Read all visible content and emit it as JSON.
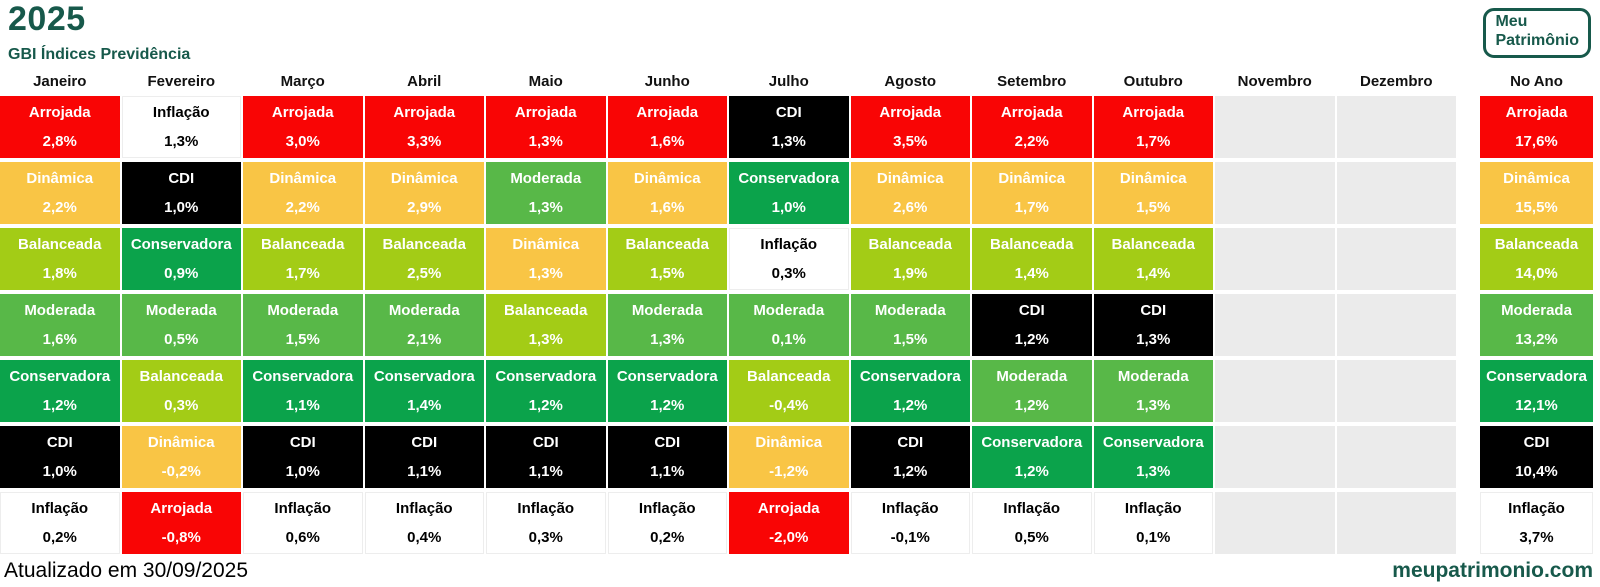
{
  "logo": {
    "line1": "Meu",
    "line2": "Patrimônio"
  },
  "footer": {
    "updated": "Atualizado em 30/09/2025",
    "site": "meupatrimonio.com"
  },
  "colors": {
    "brand": "#17594B",
    "empty_cell": "#EBEBEB",
    "header_text": "#111111"
  },
  "chart_data": {
    "type": "table",
    "title": "2025",
    "subtitle": "GBI Índices Previdência",
    "empty_color": "#EBEBEB",
    "categories": [
      "Arrojada",
      "Dinâmica",
      "Balanceada",
      "Moderada",
      "Conservadora",
      "CDI",
      "Inflação"
    ],
    "category_colors": {
      "Arrojada": {
        "bg": "#F90505",
        "text": "#FFFFFF"
      },
      "Dinâmica": {
        "bg": "#F9C545",
        "text": "#FFFFFF"
      },
      "Balanceada": {
        "bg": "#A3CC16",
        "text": "#FFFFFF"
      },
      "Moderada": {
        "bg": "#58B848",
        "text": "#FFFFFF"
      },
      "Conservadora": {
        "bg": "#0BA34B",
        "text": "#FFFFFF"
      },
      "CDI": {
        "bg": "#000000",
        "text": "#FFFFFF"
      },
      "Inflação": {
        "bg": "#FFFFFF",
        "text": "#000000"
      }
    },
    "columns": [
      {
        "label": "Janeiro",
        "cells": [
          {
            "category": "Arrojada",
            "value": "2,8%"
          },
          {
            "category": "Dinâmica",
            "value": "2,2%"
          },
          {
            "category": "Balanceada",
            "value": "1,8%"
          },
          {
            "category": "Moderada",
            "value": "1,6%"
          },
          {
            "category": "Conservadora",
            "value": "1,2%"
          },
          {
            "category": "CDI",
            "value": "1,0%"
          },
          {
            "category": "Inflação",
            "value": "0,2%"
          }
        ]
      },
      {
        "label": "Fevereiro",
        "cells": [
          {
            "category": "Inflação",
            "value": "1,3%"
          },
          {
            "category": "CDI",
            "value": "1,0%"
          },
          {
            "category": "Conservadora",
            "value": "0,9%"
          },
          {
            "category": "Moderada",
            "value": "0,5%"
          },
          {
            "category": "Balanceada",
            "value": "0,3%"
          },
          {
            "category": "Dinâmica",
            "value": "-0,2%"
          },
          {
            "category": "Arrojada",
            "value": "-0,8%"
          }
        ]
      },
      {
        "label": "Março",
        "cells": [
          {
            "category": "Arrojada",
            "value": "3,0%"
          },
          {
            "category": "Dinâmica",
            "value": "2,2%"
          },
          {
            "category": "Balanceada",
            "value": "1,7%"
          },
          {
            "category": "Moderada",
            "value": "1,5%"
          },
          {
            "category": "Conservadora",
            "value": "1,1%"
          },
          {
            "category": "CDI",
            "value": "1,0%"
          },
          {
            "category": "Inflação",
            "value": "0,6%"
          }
        ]
      },
      {
        "label": "Abril",
        "cells": [
          {
            "category": "Arrojada",
            "value": "3,3%"
          },
          {
            "category": "Dinâmica",
            "value": "2,9%"
          },
          {
            "category": "Balanceada",
            "value": "2,5%"
          },
          {
            "category": "Moderada",
            "value": "2,1%"
          },
          {
            "category": "Conservadora",
            "value": "1,4%"
          },
          {
            "category": "CDI",
            "value": "1,1%"
          },
          {
            "category": "Inflação",
            "value": "0,4%"
          }
        ]
      },
      {
        "label": "Maio",
        "cells": [
          {
            "category": "Arrojada",
            "value": "1,3%"
          },
          {
            "category": "Moderada",
            "value": "1,3%"
          },
          {
            "category": "Dinâmica",
            "value": "1,3%"
          },
          {
            "category": "Balanceada",
            "value": "1,3%"
          },
          {
            "category": "Conservadora",
            "value": "1,2%"
          },
          {
            "category": "CDI",
            "value": "1,1%"
          },
          {
            "category": "Inflação",
            "value": "0,3%"
          }
        ]
      },
      {
        "label": "Junho",
        "cells": [
          {
            "category": "Arrojada",
            "value": "1,6%"
          },
          {
            "category": "Dinâmica",
            "value": "1,6%"
          },
          {
            "category": "Balanceada",
            "value": "1,5%"
          },
          {
            "category": "Moderada",
            "value": "1,3%"
          },
          {
            "category": "Conservadora",
            "value": "1,2%"
          },
          {
            "category": "CDI",
            "value": "1,1%"
          },
          {
            "category": "Inflação",
            "value": "0,2%"
          }
        ]
      },
      {
        "label": "Julho",
        "cells": [
          {
            "category": "CDI",
            "value": "1,3%"
          },
          {
            "category": "Conservadora",
            "value": "1,0%"
          },
          {
            "category": "Inflação",
            "value": "0,3%"
          },
          {
            "category": "Moderada",
            "value": "0,1%"
          },
          {
            "category": "Balanceada",
            "value": "-0,4%"
          },
          {
            "category": "Dinâmica",
            "value": "-1,2%"
          },
          {
            "category": "Arrojada",
            "value": "-2,0%"
          }
        ]
      },
      {
        "label": "Agosto",
        "cells": [
          {
            "category": "Arrojada",
            "value": "3,5%"
          },
          {
            "category": "Dinâmica",
            "value": "2,6%"
          },
          {
            "category": "Balanceada",
            "value": "1,9%"
          },
          {
            "category": "Moderada",
            "value": "1,5%"
          },
          {
            "category": "Conservadora",
            "value": "1,2%"
          },
          {
            "category": "CDI",
            "value": "1,2%"
          },
          {
            "category": "Inflação",
            "value": "-0,1%"
          }
        ]
      },
      {
        "label": "Setembro",
        "cells": [
          {
            "category": "Arrojada",
            "value": "2,2%"
          },
          {
            "category": "Dinâmica",
            "value": "1,7%"
          },
          {
            "category": "Balanceada",
            "value": "1,4%"
          },
          {
            "category": "CDI",
            "value": "1,2%"
          },
          {
            "category": "Moderada",
            "value": "1,2%"
          },
          {
            "category": "Conservadora",
            "value": "1,2%"
          },
          {
            "category": "Inflação",
            "value": "0,5%"
          }
        ]
      },
      {
        "label": "Outubro",
        "cells": [
          {
            "category": "Arrojada",
            "value": "1,7%"
          },
          {
            "category": "Dinâmica",
            "value": "1,5%"
          },
          {
            "category": "Balanceada",
            "value": "1,4%"
          },
          {
            "category": "CDI",
            "value": "1,3%"
          },
          {
            "category": "Moderada",
            "value": "1,3%"
          },
          {
            "category": "Conservadora",
            "value": "1,3%"
          },
          {
            "category": "Inflação",
            "value": "0,1%"
          }
        ]
      },
      {
        "label": "Novembro",
        "cells": []
      },
      {
        "label": "Dezembro",
        "cells": []
      },
      {
        "label": "No Ano",
        "year_total": true,
        "spacer_before": true,
        "cells": [
          {
            "category": "Arrojada",
            "value": "17,6%"
          },
          {
            "category": "Dinâmica",
            "value": "15,5%"
          },
          {
            "category": "Balanceada",
            "value": "14,0%"
          },
          {
            "category": "Moderada",
            "value": "13,2%"
          },
          {
            "category": "Conservadora",
            "value": "12,1%"
          },
          {
            "category": "CDI",
            "value": "10,4%"
          },
          {
            "category": "Inflação",
            "value": "3,7%"
          }
        ]
      }
    ]
  }
}
